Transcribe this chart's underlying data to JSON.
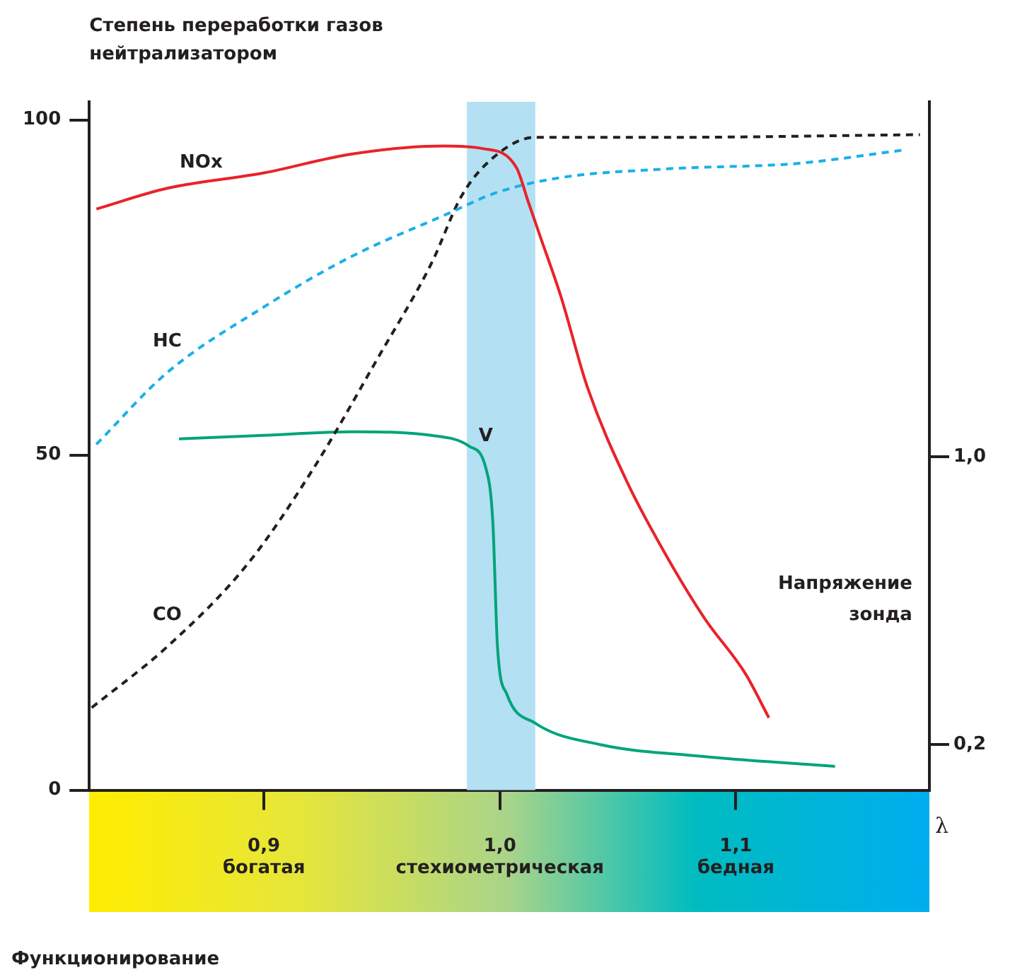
{
  "chart_data": {
    "type": "line",
    "ylabel": "Степень переработки газов нейтрализатором",
    "y2label": "Напряжение зонда",
    "xlabel": "λ",
    "xlim": [
      0.826,
      1.182
    ],
    "xticks": [
      {
        "value": 0.9,
        "label": "0,9\nбогатая"
      },
      {
        "value": 1.0,
        "label": "1,0\nстехиометрическая"
      },
      {
        "value": 1.1,
        "label": "1,1\nбедная"
      }
    ],
    "ylim": [
      0,
      102.7
    ],
    "yticks": [
      0,
      50,
      100
    ],
    "y2lim": [
      0.074,
      1.987
    ],
    "y2ticks": [
      {
        "value": 0.2,
        "label": "0,2"
      },
      {
        "value": 1.0,
        "label": "1,0"
      }
    ],
    "grid": false,
    "legend": false,
    "marker": "none",
    "bands": [
      {
        "axis": "x",
        "from": 0.986,
        "to": 1.015,
        "label": null,
        "color": "#b3e0f2"
      }
    ],
    "series": [
      {
        "name": "NOx",
        "color": "#e8232a",
        "line_style": "solid",
        "x": [
          0.829,
          0.859,
          0.9,
          0.937,
          0.976,
          0.993,
          1.007,
          1.012,
          1.017,
          1.026,
          1.037,
          1.054,
          1.071,
          1.087,
          1.104,
          1.114
        ],
        "values": [
          86.7,
          89.8,
          92.1,
          94.9,
          96.1,
          95.7,
          92.9,
          87.8,
          82.7,
          73.5,
          60.2,
          45.9,
          34.7,
          25.5,
          17.4,
          10.8
        ]
      },
      {
        "name": "HC",
        "color": "#1ab0e8",
        "line_style": "dashed",
        "x": [
          0.829,
          0.859,
          0.9,
          0.937,
          0.976,
          0.999,
          1.026,
          1.071,
          1.126,
          1.171
        ],
        "values": [
          51.6,
          62.3,
          72.1,
          79.6,
          85.7,
          89.2,
          91.4,
          92.7,
          93.5,
          95.5
        ]
      },
      {
        "name": "CO",
        "color": "#231f20",
        "line_style": "dashed",
        "x": [
          0.827,
          0.859,
          0.893,
          0.921,
          0.948,
          0.971,
          0.984,
          0.999,
          1.015,
          1.071,
          1.178
        ],
        "values": [
          12.3,
          21.4,
          33.7,
          48.0,
          64.3,
          78.6,
          88.8,
          94.9,
          97.4,
          97.4,
          97.8
        ]
      },
      {
        "name": "V",
        "color": "#00a47a",
        "line_style": "solid",
        "axis": "y2",
        "x": [
          0.864,
          0.9,
          0.937,
          0.971,
          0.987,
          0.994,
          0.997,
          0.999,
          1.003,
          1.015,
          1.043,
          1.082,
          1.142
        ],
        "values": [
          1.05,
          1.06,
          1.07,
          1.06,
          1.03,
          0.97,
          0.82,
          0.47,
          0.34,
          0.26,
          0.2,
          0.17,
          0.14
        ]
      }
    ],
    "annotations": [
      "Функционирование"
    ]
  }
}
